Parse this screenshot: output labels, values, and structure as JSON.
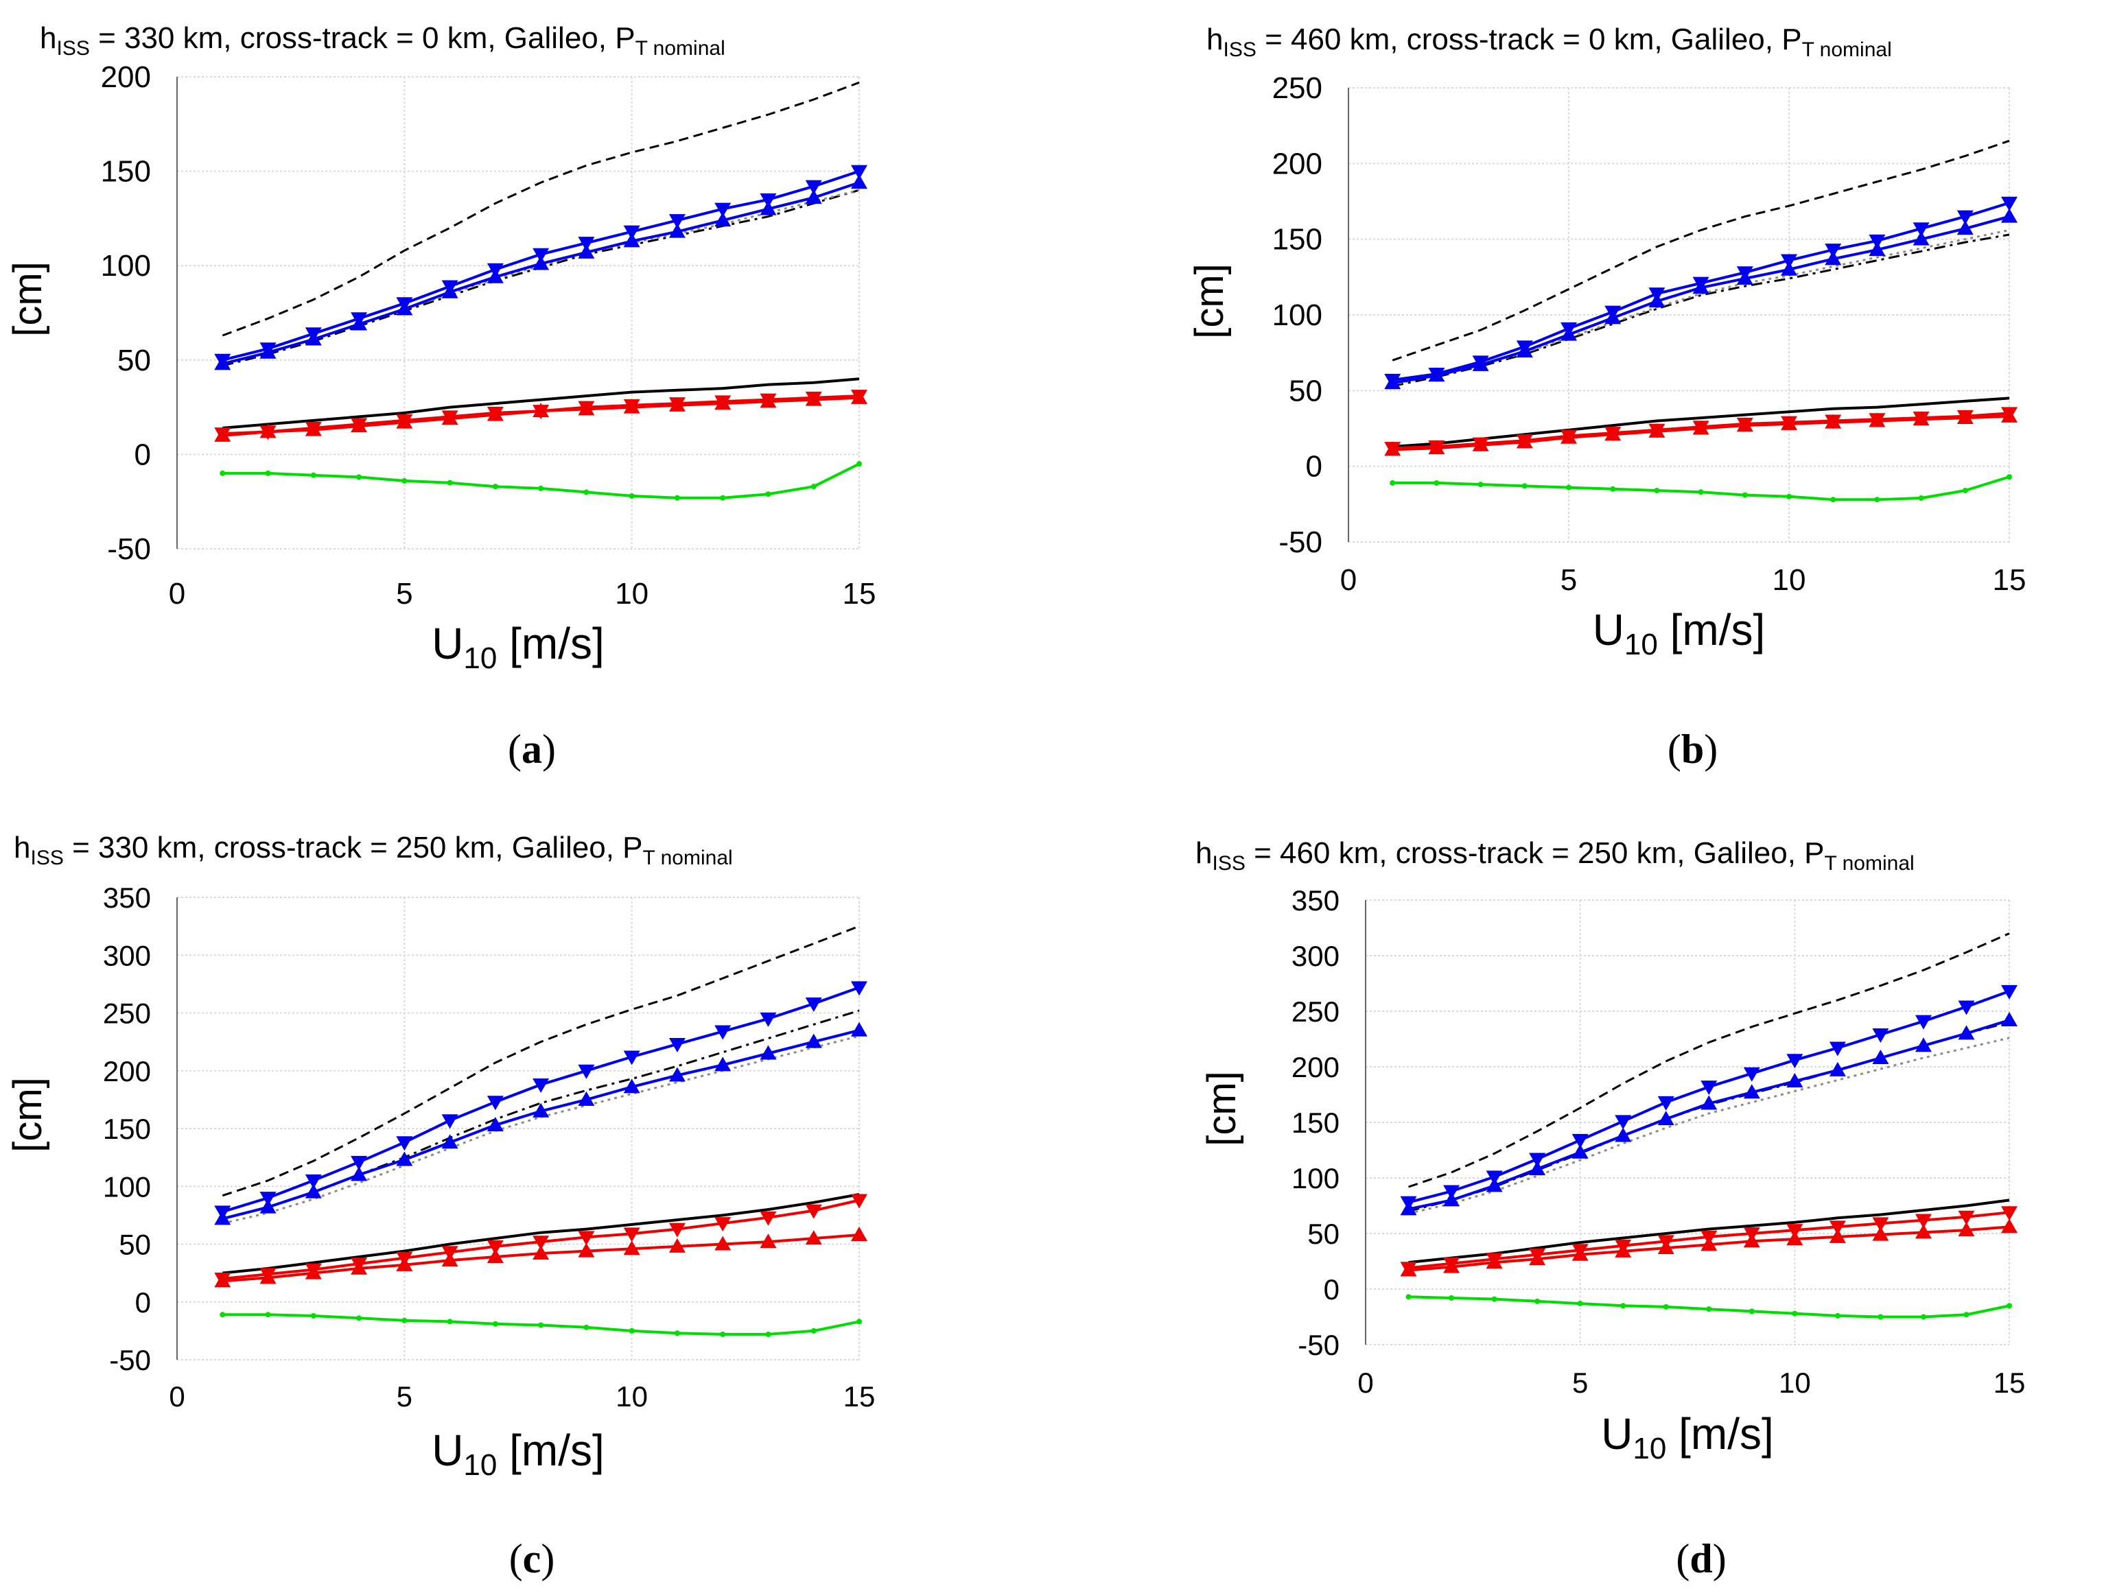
{
  "figure": {
    "background": "#ffffff"
  },
  "styles": {
    "blue": "#0000ee",
    "red": "#ee0000",
    "green": "#00dd00",
    "black": "#000000",
    "grid": "#d9d9d9"
  },
  "chart_data": [
    {
      "id": "a",
      "type": "line",
      "caption": "a",
      "title": {
        "prefix": "h",
        "sub1": "ISS",
        "mid": " = 330 km, cross-track = 0 km, Galileo, P",
        "sub2": "T nominal"
      },
      "xlabel": {
        "main": "U",
        "sub": "10",
        "unit": " [m/s]"
      },
      "ylabel": "[cm]",
      "xlim": [
        0,
        15
      ],
      "ylim": [
        -50,
        200
      ],
      "xticks": [
        0,
        5,
        10,
        15
      ],
      "yticks": [
        -50,
        0,
        50,
        100,
        150,
        200
      ],
      "grid": true,
      "x": [
        1,
        2,
        3,
        4,
        5,
        6,
        7,
        8,
        9,
        10,
        11,
        12,
        13,
        14,
        15
      ],
      "series": [
        {
          "name": "black dashed upper",
          "color": "black",
          "style": "dashed",
          "marker": "none",
          "values": [
            63,
            72,
            82,
            94,
            108,
            120,
            133,
            144,
            153,
            160,
            166,
            173,
            180,
            188,
            197
          ]
        },
        {
          "name": "black dash-dot",
          "color": "black",
          "style": "dashdot",
          "marker": "none",
          "values": [
            47,
            53,
            60,
            68,
            76,
            84,
            92,
            99,
            106,
            111,
            116,
            121,
            126,
            133,
            140
          ]
        },
        {
          "name": "grey dotted",
          "color": "grey",
          "style": "dotted",
          "marker": "none",
          "values": [
            48,
            54,
            61,
            69,
            77,
            85,
            93,
            100,
            107,
            112,
            117,
            122,
            128,
            134,
            140
          ]
        },
        {
          "name": "blue up-triangle",
          "color": "blue",
          "style": "solid",
          "marker": "triangle-up",
          "values": [
            48,
            54,
            61,
            69,
            77,
            86,
            94,
            101,
            107,
            113,
            118,
            124,
            130,
            136,
            144
          ]
        },
        {
          "name": "blue down-triangle",
          "color": "blue",
          "style": "solid",
          "marker": "triangle-down",
          "values": [
            50,
            56,
            64,
            72,
            80,
            89,
            98,
            106,
            112,
            118,
            124,
            130,
            135,
            142,
            150
          ]
        },
        {
          "name": "black solid",
          "color": "black",
          "style": "solid",
          "marker": "none",
          "values": [
            14,
            16,
            18,
            20,
            22,
            25,
            27,
            29,
            31,
            33,
            34,
            35,
            37,
            38,
            40
          ]
        },
        {
          "name": "red up-triangle",
          "color": "red",
          "style": "solid",
          "marker": "triangle-up",
          "values": [
            10,
            12,
            13,
            15,
            17,
            19,
            21,
            23,
            24,
            25,
            26,
            27,
            28,
            29,
            30
          ]
        },
        {
          "name": "red down-triangle",
          "color": "red",
          "style": "solid",
          "marker": "triangle-down",
          "values": [
            11,
            12,
            14,
            16,
            18,
            20,
            22,
            23,
            25,
            26,
            27,
            28,
            29,
            30,
            31
          ]
        },
        {
          "name": "green",
          "color": "green",
          "style": "solid",
          "marker": "dot",
          "values": [
            -10,
            -10,
            -11,
            -12,
            -14,
            -15,
            -17,
            -18,
            -20,
            -22,
            -23,
            -23,
            -21,
            -17,
            -5
          ]
        }
      ]
    },
    {
      "id": "b",
      "type": "line",
      "caption": "b",
      "title": {
        "prefix": "h",
        "sub1": "ISS",
        "mid": " = 460 km, cross-track = 0 km, Galileo, P",
        "sub2": "T nominal"
      },
      "xlabel": {
        "main": "U",
        "sub": "10",
        "unit": " [m/s]"
      },
      "ylabel": "[cm]",
      "xlim": [
        0,
        15
      ],
      "ylim": [
        -50,
        250
      ],
      "xticks": [
        0,
        5,
        10,
        15
      ],
      "yticks": [
        -50,
        0,
        50,
        100,
        150,
        200,
        250
      ],
      "grid": true,
      "x": [
        1,
        2,
        3,
        4,
        5,
        6,
        7,
        8,
        9,
        10,
        11,
        12,
        13,
        14,
        15
      ],
      "series": [
        {
          "name": "black dashed upper",
          "color": "black",
          "style": "dashed",
          "marker": "none",
          "values": [
            70,
            80,
            90,
            103,
            117,
            131,
            145,
            156,
            165,
            172,
            180,
            188,
            196,
            205,
            215
          ]
        },
        {
          "name": "black dash-dot",
          "color": "black",
          "style": "dashdot",
          "marker": "none",
          "values": [
            53,
            59,
            66,
            74,
            84,
            94,
            104,
            113,
            119,
            124,
            130,
            136,
            142,
            148,
            153
          ]
        },
        {
          "name": "grey dotted",
          "color": "grey",
          "style": "dotted",
          "marker": "none",
          "values": [
            54,
            60,
            67,
            75,
            85,
            95,
            105,
            114,
            121,
            126,
            132,
            138,
            144,
            150,
            156
          ]
        },
        {
          "name": "blue up-triangle",
          "color": "blue",
          "style": "solid",
          "marker": "triangle-up",
          "values": [
            55,
            60,
            67,
            76,
            87,
            98,
            109,
            118,
            124,
            130,
            137,
            143,
            150,
            157,
            165
          ]
        },
        {
          "name": "blue down-triangle",
          "color": "blue",
          "style": "solid",
          "marker": "triangle-down",
          "values": [
            57,
            61,
            69,
            79,
            91,
            102,
            114,
            121,
            128,
            136,
            143,
            149,
            157,
            165,
            174
          ]
        },
        {
          "name": "black solid",
          "color": "black",
          "style": "solid",
          "marker": "none",
          "values": [
            13,
            15,
            18,
            21,
            24,
            27,
            30,
            32,
            34,
            36,
            38,
            39,
            41,
            43,
            45
          ]
        },
        {
          "name": "red up-triangle",
          "color": "red",
          "style": "solid",
          "marker": "triangle-up",
          "values": [
            11,
            12,
            14,
            16,
            19,
            21,
            23,
            25,
            27,
            28,
            29,
            30,
            31,
            32,
            33
          ]
        },
        {
          "name": "red down-triangle",
          "color": "red",
          "style": "solid",
          "marker": "triangle-down",
          "values": [
            12,
            13,
            15,
            17,
            20,
            22,
            24,
            26,
            28,
            29,
            30,
            31,
            32,
            33,
            35
          ]
        },
        {
          "name": "green",
          "color": "green",
          "style": "solid",
          "marker": "dot",
          "values": [
            -11,
            -11,
            -12,
            -13,
            -14,
            -15,
            -16,
            -17,
            -19,
            -20,
            -22,
            -22,
            -21,
            -16,
            -7
          ]
        }
      ]
    },
    {
      "id": "c",
      "type": "line",
      "caption": "c",
      "title": {
        "prefix": "h",
        "sub1": "ISS",
        "mid": " = 330 km, cross-track = 250 km, Galileo, P",
        "sub2": "T nominal"
      },
      "xlabel": {
        "main": "U",
        "sub": "10",
        "unit": " [m/s]"
      },
      "ylabel": "[cm]",
      "xlim": [
        0,
        15
      ],
      "ylim": [
        -50,
        350
      ],
      "xticks": [
        0,
        5,
        10,
        15
      ],
      "yticks": [
        -50,
        0,
        50,
        100,
        150,
        200,
        250,
        300,
        350
      ],
      "grid": true,
      "x": [
        1,
        2,
        3,
        4,
        5,
        6,
        7,
        8,
        9,
        10,
        11,
        12,
        13,
        14,
        15
      ],
      "series": [
        {
          "name": "black dashed upper",
          "color": "black",
          "style": "dashed",
          "marker": "none",
          "values": [
            92,
            105,
            122,
            142,
            163,
            185,
            207,
            225,
            240,
            253,
            265,
            280,
            295,
            310,
            325
          ]
        },
        {
          "name": "black dash-dot",
          "color": "black",
          "style": "dashdot",
          "marker": "none",
          "values": [
            72,
            82,
            95,
            110,
            125,
            142,
            158,
            172,
            183,
            193,
            204,
            216,
            228,
            240,
            252
          ]
        },
        {
          "name": "grey dotted",
          "color": "grey",
          "style": "dotted",
          "marker": "none",
          "values": [
            68,
            77,
            89,
            103,
            118,
            133,
            148,
            160,
            170,
            180,
            190,
            200,
            210,
            220,
            230
          ]
        },
        {
          "name": "blue up-triangle",
          "color": "blue",
          "style": "solid",
          "marker": "triangle-up",
          "values": [
            72,
            82,
            95,
            110,
            123,
            138,
            153,
            165,
            175,
            186,
            196,
            205,
            215,
            225,
            235
          ]
        },
        {
          "name": "blue down-triangle",
          "color": "blue",
          "style": "solid",
          "marker": "triangle-down",
          "values": [
            78,
            90,
            105,
            121,
            138,
            157,
            173,
            188,
            200,
            212,
            223,
            234,
            245,
            258,
            272
          ]
        },
        {
          "name": "black solid",
          "color": "black",
          "style": "solid",
          "marker": "none",
          "values": [
            25,
            29,
            34,
            39,
            44,
            50,
            55,
            60,
            63,
            67,
            71,
            75,
            80,
            86,
            93
          ]
        },
        {
          "name": "red up-triangle",
          "color": "red",
          "style": "solid",
          "marker": "triangle-up",
          "values": [
            18,
            21,
            25,
            29,
            32,
            36,
            39,
            42,
            44,
            46,
            48,
            50,
            52,
            55,
            58
          ]
        },
        {
          "name": "red down-triangle",
          "color": "red",
          "style": "solid",
          "marker": "triangle-down",
          "values": [
            20,
            24,
            28,
            33,
            38,
            43,
            48,
            52,
            56,
            59,
            63,
            68,
            73,
            79,
            88
          ]
        },
        {
          "name": "green",
          "color": "green",
          "style": "solid",
          "marker": "dot",
          "values": [
            -11,
            -11,
            -12,
            -14,
            -16,
            -17,
            -19,
            -20,
            -22,
            -25,
            -27,
            -28,
            -28,
            -25,
            -17
          ]
        }
      ]
    },
    {
      "id": "d",
      "type": "line",
      "caption": "d",
      "title": {
        "prefix": "h",
        "sub1": "ISS",
        "mid": " = 460 km, cross-track = 250 km, Galileo, P",
        "sub2": "T nominal"
      },
      "xlabel": {
        "main": "U",
        "sub": "10",
        "unit": " [m/s]"
      },
      "ylabel": "[cm]",
      "xlim": [
        0,
        15
      ],
      "ylim": [
        -50,
        350
      ],
      "xticks": [
        0,
        5,
        10,
        15
      ],
      "yticks": [
        -50,
        0,
        50,
        100,
        150,
        200,
        250,
        300,
        350
      ],
      "grid": true,
      "x": [
        1,
        2,
        3,
        4,
        5,
        6,
        7,
        8,
        9,
        10,
        11,
        12,
        13,
        14,
        15
      ],
      "series": [
        {
          "name": "black dashed upper",
          "color": "black",
          "style": "dashed",
          "marker": "none",
          "values": [
            92,
            105,
            122,
            142,
            163,
            185,
            205,
            222,
            236,
            248,
            260,
            273,
            287,
            303,
            320
          ]
        },
        {
          "name": "black dash-dot",
          "color": "black",
          "style": "dashdot",
          "marker": "none",
          "values": [
            70,
            80,
            92,
            107,
            122,
            138,
            153,
            166,
            176,
            186,
            197,
            208,
            219,
            230,
            240
          ]
        },
        {
          "name": "grey dotted",
          "color": "grey",
          "style": "dotted",
          "marker": "none",
          "values": [
            68,
            77,
            88,
            102,
            116,
            131,
            145,
            158,
            168,
            178,
            188,
            198,
            208,
            217,
            226
          ]
        },
        {
          "name": "blue up-triangle",
          "color": "blue",
          "style": "solid",
          "marker": "triangle-up",
          "values": [
            72,
            80,
            93,
            108,
            123,
            138,
            153,
            167,
            177,
            187,
            197,
            208,
            219,
            230,
            242
          ]
        },
        {
          "name": "blue down-triangle",
          "color": "blue",
          "style": "solid",
          "marker": "triangle-down",
          "values": [
            78,
            88,
            101,
            117,
            134,
            151,
            168,
            182,
            194,
            206,
            217,
            229,
            241,
            254,
            268
          ]
        },
        {
          "name": "black solid",
          "color": "black",
          "style": "solid",
          "marker": "none",
          "values": [
            24,
            28,
            32,
            37,
            42,
            46,
            50,
            54,
            57,
            60,
            64,
            67,
            71,
            75,
            80
          ]
        },
        {
          "name": "red up-triangle",
          "color": "red",
          "style": "solid",
          "marker": "triangle-up",
          "values": [
            17,
            20,
            24,
            27,
            31,
            34,
            37,
            40,
            43,
            45,
            47,
            49,
            51,
            53,
            56
          ]
        },
        {
          "name": "red down-triangle",
          "color": "red",
          "style": "solid",
          "marker": "triangle-down",
          "values": [
            19,
            23,
            27,
            31,
            35,
            39,
            43,
            47,
            50,
            53,
            56,
            59,
            62,
            65,
            69
          ]
        },
        {
          "name": "green",
          "color": "green",
          "style": "solid",
          "marker": "dot",
          "values": [
            -7,
            -8,
            -9,
            -11,
            -13,
            -15,
            -16,
            -18,
            -20,
            -22,
            -24,
            -25,
            -25,
            -23,
            -15
          ]
        }
      ]
    }
  ]
}
